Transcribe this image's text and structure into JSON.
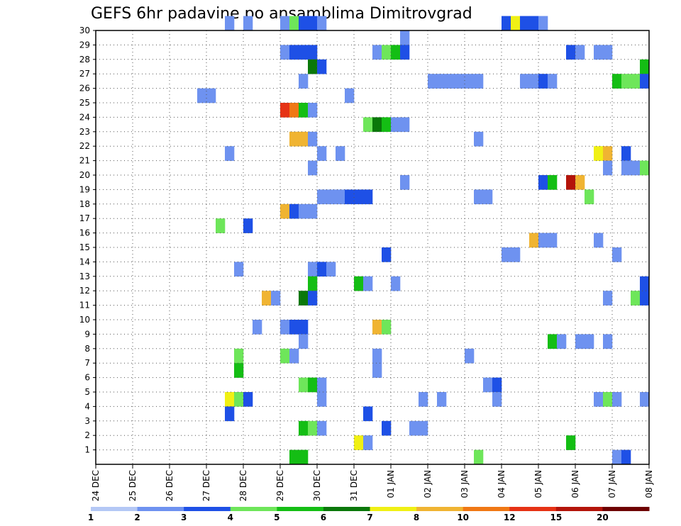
{
  "chart_data": {
    "type": "heatmap",
    "title": "GEFS 6hr padavine po ansamblima Dimitrovgrad",
    "xlabel": "",
    "ylabel": "",
    "x_ticks": [
      "24 DEC",
      "25 DEC",
      "26 DEC",
      "27 DEC",
      "28 DEC",
      "29 DEC",
      "30 DEC",
      "31 DEC",
      "01 JAN",
      "02 JAN",
      "03 JAN",
      "04 JAN",
      "05 JAN",
      "06 JAN",
      "07 JAN",
      "08 JAN"
    ],
    "y_ticks": [
      "1",
      "2",
      "3",
      "4",
      "5",
      "6",
      "7",
      "8",
      "9",
      "10",
      "11",
      "12",
      "13",
      "14",
      "15",
      "16",
      "17",
      "18",
      "19",
      "20",
      "21",
      "22",
      "23",
      "24",
      "25",
      "26",
      "27",
      "28",
      "29",
      "30"
    ],
    "x_range": [
      0,
      60
    ],
    "y_range": [
      0,
      30
    ],
    "x_unit": "6-hour steps from 24 DEC 00Z",
    "grid": true,
    "colorbar": {
      "ticks": [
        "1",
        "2",
        "3",
        "4",
        "5",
        "6",
        "7",
        "8",
        "10",
        "12",
        "15",
        "20"
      ],
      "colors": [
        "#b4c8f5",
        "#6e92f0",
        "#1e50e6",
        "#6ee65a",
        "#14be14",
        "#0a780a",
        "#f0f014",
        "#f0b432",
        "#f07814",
        "#e63214",
        "#b4140a",
        "#6e0000"
      ]
    },
    "cells": [
      [
        14,
        30,
        1
      ],
      [
        16,
        30,
        1
      ],
      [
        20,
        30,
        1
      ],
      [
        21,
        30,
        3
      ],
      [
        22,
        30,
        2
      ],
      [
        23,
        30,
        2
      ],
      [
        24,
        30,
        1
      ],
      [
        44,
        30,
        2
      ],
      [
        45,
        30,
        6
      ],
      [
        46,
        30,
        2
      ],
      [
        47,
        30,
        2
      ],
      [
        48,
        30,
        1
      ],
      [
        33,
        29,
        1
      ],
      [
        20,
        28,
        1
      ],
      [
        21,
        28,
        2
      ],
      [
        22,
        28,
        2
      ],
      [
        23,
        28,
        2
      ],
      [
        30,
        28,
        1
      ],
      [
        31,
        28,
        3
      ],
      [
        32,
        28,
        4
      ],
      [
        33,
        28,
        2
      ],
      [
        51,
        28,
        2
      ],
      [
        52,
        28,
        1
      ],
      [
        54,
        28,
        1
      ],
      [
        55,
        28,
        1
      ],
      [
        23,
        27,
        5
      ],
      [
        24,
        27,
        2
      ],
      [
        59,
        27,
        4
      ],
      [
        22,
        26,
        1
      ],
      [
        36,
        26,
        1
      ],
      [
        37,
        26,
        1
      ],
      [
        38,
        26,
        1
      ],
      [
        39,
        26,
        1
      ],
      [
        40,
        26,
        1
      ],
      [
        41,
        26,
        1
      ],
      [
        46,
        26,
        1
      ],
      [
        47,
        26,
        1
      ],
      [
        48,
        26,
        2
      ],
      [
        49,
        26,
        1
      ],
      [
        56,
        26,
        4
      ],
      [
        57,
        26,
        3
      ],
      [
        58,
        26,
        3
      ],
      [
        59,
        26,
        2
      ],
      [
        11,
        25,
        1
      ],
      [
        12,
        25,
        1
      ],
      [
        27,
        25,
        1
      ],
      [
        20,
        24,
        9
      ],
      [
        21,
        24,
        8
      ],
      [
        22,
        24,
        4
      ],
      [
        23,
        24,
        1
      ],
      [
        29,
        23,
        3
      ],
      [
        30,
        23,
        5
      ],
      [
        31,
        23,
        4
      ],
      [
        32,
        23,
        1
      ],
      [
        33,
        23,
        1
      ],
      [
        21,
        22,
        7
      ],
      [
        22,
        22,
        7
      ],
      [
        23,
        22,
        1
      ],
      [
        41,
        22,
        1
      ],
      [
        14,
        21,
        1
      ],
      [
        24,
        21,
        1
      ],
      [
        26,
        21,
        1
      ],
      [
        54,
        21,
        6
      ],
      [
        55,
        21,
        7
      ],
      [
        57,
        21,
        2
      ],
      [
        23,
        20,
        1
      ],
      [
        55,
        20,
        1
      ],
      [
        57,
        20,
        1
      ],
      [
        58,
        20,
        1
      ],
      [
        59,
        20,
        3
      ],
      [
        33,
        19,
        1
      ],
      [
        48,
        19,
        2
      ],
      [
        49,
        19,
        4
      ],
      [
        51,
        19,
        10
      ],
      [
        52,
        19,
        7
      ],
      [
        24,
        18,
        1
      ],
      [
        25,
        18,
        1
      ],
      [
        26,
        18,
        1
      ],
      [
        27,
        18,
        2
      ],
      [
        28,
        18,
        2
      ],
      [
        29,
        18,
        2
      ],
      [
        41,
        18,
        1
      ],
      [
        42,
        18,
        1
      ],
      [
        53,
        18,
        3
      ],
      [
        20,
        17,
        7
      ],
      [
        21,
        17,
        2
      ],
      [
        22,
        17,
        1
      ],
      [
        23,
        17,
        1
      ],
      [
        13,
        16,
        3
      ],
      [
        16,
        16,
        2
      ],
      [
        47,
        15,
        7
      ],
      [
        48,
        15,
        1
      ],
      [
        49,
        15,
        1
      ],
      [
        54,
        15,
        1
      ],
      [
        31,
        14,
        2
      ],
      [
        44,
        14,
        1
      ],
      [
        45,
        14,
        1
      ],
      [
        56,
        14,
        1
      ],
      [
        15,
        13,
        1
      ],
      [
        23,
        13,
        1
      ],
      [
        24,
        13,
        2
      ],
      [
        25,
        13,
        1
      ],
      [
        23,
        12,
        4
      ],
      [
        28,
        12,
        4
      ],
      [
        29,
        12,
        1
      ],
      [
        32,
        12,
        1
      ],
      [
        59,
        12,
        2
      ],
      [
        18,
        11,
        7
      ],
      [
        19,
        11,
        1
      ],
      [
        22,
        11,
        5
      ],
      [
        23,
        11,
        2
      ],
      [
        55,
        11,
        1
      ],
      [
        58,
        11,
        3
      ],
      [
        59,
        11,
        2
      ],
      [
        17,
        9,
        1
      ],
      [
        20,
        9,
        1
      ],
      [
        21,
        9,
        2
      ],
      [
        22,
        9,
        2
      ],
      [
        30,
        9,
        7
      ],
      [
        31,
        9,
        3
      ],
      [
        22,
        8,
        1
      ],
      [
        49,
        8,
        4
      ],
      [
        50,
        8,
        1
      ],
      [
        52,
        8,
        1
      ],
      [
        53,
        8,
        1
      ],
      [
        55,
        8,
        1
      ],
      [
        15,
        7,
        3
      ],
      [
        20,
        7,
        3
      ],
      [
        21,
        7,
        1
      ],
      [
        30,
        7,
        1
      ],
      [
        40,
        7,
        1
      ],
      [
        15,
        6,
        4
      ],
      [
        30,
        6,
        1
      ],
      [
        22,
        5,
        3
      ],
      [
        23,
        5,
        4
      ],
      [
        24,
        5,
        1
      ],
      [
        42,
        5,
        1
      ],
      [
        43,
        5,
        2
      ],
      [
        14,
        4,
        6
      ],
      [
        15,
        4,
        3
      ],
      [
        16,
        4,
        2
      ],
      [
        24,
        4,
        1
      ],
      [
        35,
        4,
        1
      ],
      [
        37,
        4,
        1
      ],
      [
        43,
        4,
        1
      ],
      [
        54,
        4,
        1
      ],
      [
        55,
        4,
        3
      ],
      [
        56,
        4,
        1
      ],
      [
        59,
        4,
        1
      ],
      [
        14,
        3,
        2
      ],
      [
        29,
        3,
        2
      ],
      [
        22,
        2,
        4
      ],
      [
        23,
        2,
        3
      ],
      [
        24,
        2,
        1
      ],
      [
        31,
        2,
        2
      ],
      [
        34,
        2,
        1
      ],
      [
        35,
        2,
        1
      ],
      [
        28,
        1,
        6
      ],
      [
        29,
        1,
        1
      ],
      [
        51,
        1,
        4
      ],
      [
        21,
        0,
        4
      ],
      [
        22,
        0,
        4
      ],
      [
        41,
        0,
        3
      ],
      [
        56,
        0,
        1
      ],
      [
        57,
        0,
        2
      ]
    ]
  }
}
